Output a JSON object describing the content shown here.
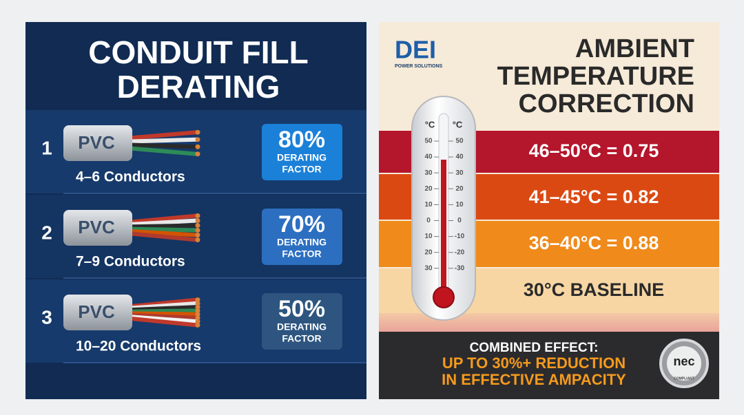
{
  "left_panel": {
    "title_lines": [
      "CONDUIT FILL",
      "DERATING"
    ],
    "rows": [
      {
        "number": "1",
        "jacket": "PVC",
        "conductors": "4–6 Conductors",
        "percent": "80%",
        "factor_lines": [
          "DERATING",
          "FACTOR"
        ]
      },
      {
        "number": "2",
        "jacket": "PVC",
        "conductors": "7–9 Conductors",
        "percent": "70%",
        "factor_lines": [
          "DERATING",
          "FACTOR"
        ]
      },
      {
        "number": "3",
        "jacket": "PVC",
        "conductors": "10–20 Conductors",
        "percent": "50%",
        "factor_lines": [
          "DERATING",
          "FACTOR"
        ]
      }
    ]
  },
  "right_panel": {
    "logo": "DEI",
    "logo_tagline": "POWER SOLUTIONS",
    "title_lines": [
      "AMBIENT",
      "TEMPERATURE",
      "CORRECTION"
    ],
    "thermometer": {
      "unit_left": "°C",
      "unit_right": "°C",
      "left_scale": [
        "50",
        "40",
        "30",
        "20",
        "10",
        "0",
        "10",
        "20",
        "30"
      ],
      "right_scale": [
        "50",
        "40",
        "30",
        "20",
        "10",
        "0",
        "-10",
        "-20",
        "-30"
      ]
    },
    "bands": [
      "46–50°C = 0.75",
      "41–45°C = 0.82",
      "36–40°C = 0.88",
      "30°C BASELINE"
    ],
    "footer": {
      "lead": "COMBINED EFFECT:",
      "highlight_lines": [
        "UP TO 30%+ REDUCTION",
        "IN EFFECTIVE AMPACITY"
      ]
    },
    "badge": {
      "text": "nec",
      "subtext": "COMPLIANT"
    }
  }
}
